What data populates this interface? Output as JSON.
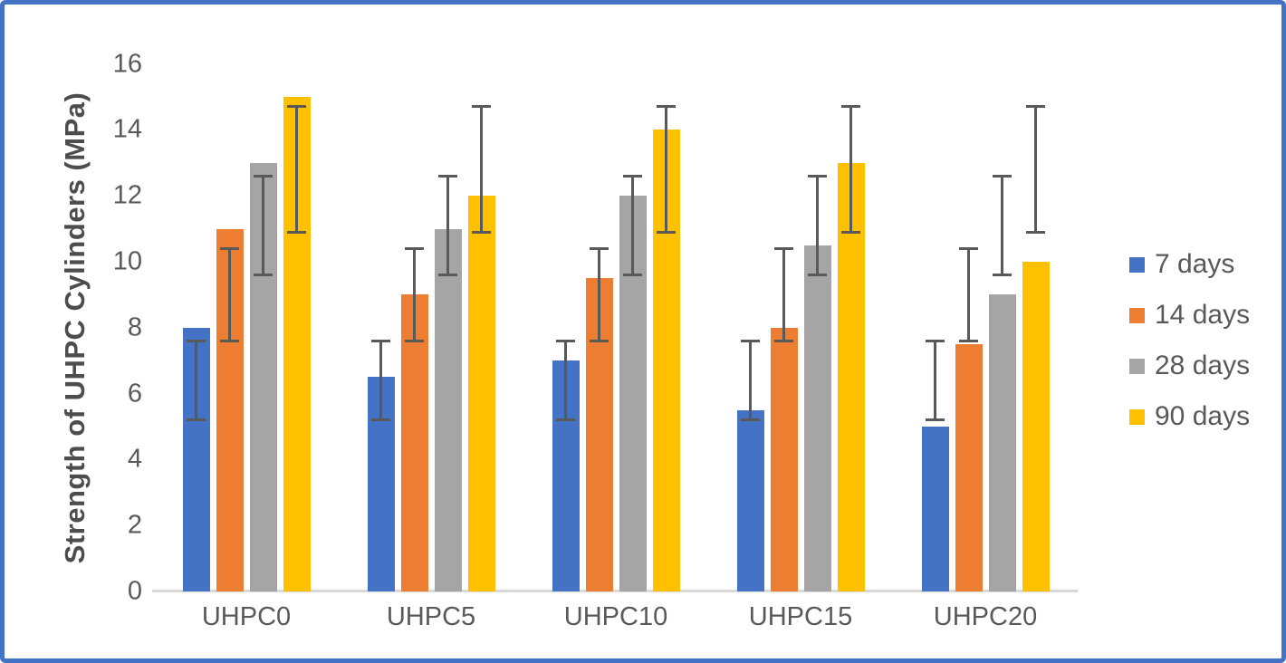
{
  "frame": {
    "border_color": "#4472C4",
    "background_color": "#FFFFFF"
  },
  "chart_data": {
    "type": "bar",
    "title": "",
    "xlabel": "",
    "ylabel": "Strength of UHPC Cylinders (MPa)",
    "ylim": [
      0,
      16
    ],
    "yticks": [
      0,
      2,
      4,
      6,
      8,
      10,
      12,
      14,
      16
    ],
    "grid": false,
    "legend_position": "right",
    "categories": [
      "UHPC0",
      "UHPC5",
      "UHPC10",
      "UHPC15",
      "UHPC20"
    ],
    "series": [
      {
        "name": "7 days",
        "color": "#4472C4",
        "values": [
          8,
          6.5,
          7,
          5.5,
          5
        ],
        "error_bar": {
          "low": 5.2,
          "high": 7.6
        }
      },
      {
        "name": "14 days",
        "color": "#ED7D31",
        "values": [
          11,
          9,
          9.5,
          8,
          7.5
        ],
        "error_bar": {
          "low": 7.6,
          "high": 10.4
        }
      },
      {
        "name": "28 days",
        "color": "#A5A5A5",
        "values": [
          13,
          11,
          12,
          10.5,
          9
        ],
        "error_bar": {
          "low": 9.6,
          "high": 12.6
        }
      },
      {
        "name": "90 days",
        "color": "#FFC000",
        "values": [
          15,
          12,
          14,
          13,
          10
        ],
        "error_bar": {
          "low": 10.9,
          "high": 14.7
        }
      }
    ],
    "error_bar_color": "#595959",
    "axis_line_color": "#D9D9D9",
    "text_color": "#595959"
  }
}
